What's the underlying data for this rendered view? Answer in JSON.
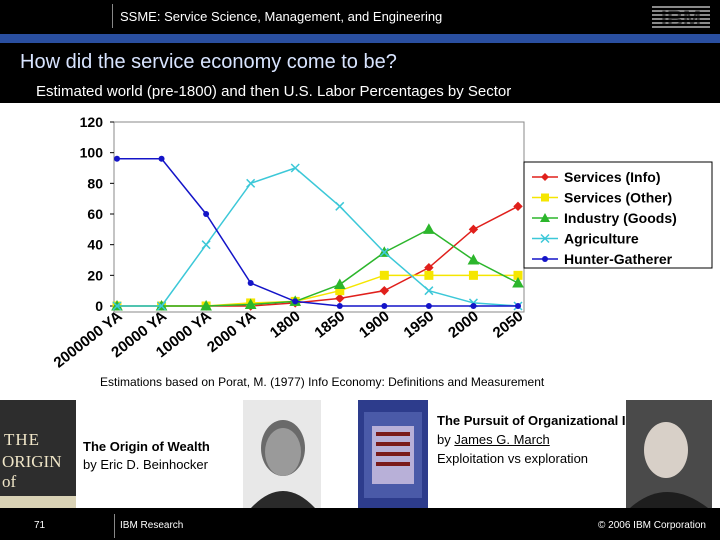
{
  "header": {
    "title": "SSME: Service Science, Management, and Engineering",
    "logo": "IBM"
  },
  "slide_title": "How did the service economy come to be?",
  "chart_heading": "Estimated world (pre-1800) and then U.S. Labor Percentages by Sector",
  "source_note": "Estimations based on Porat, M. (1977) Info Economy: Definitions and Measurement",
  "chart_data": {
    "type": "line",
    "categories": [
      "2000000 YA",
      "20000 YA",
      "10000 YA",
      "2000 YA",
      "1800",
      "1850",
      "1900",
      "1950",
      "2000",
      "2050"
    ],
    "ylim": [
      0,
      120
    ],
    "yticks": [
      "0",
      "20",
      "40",
      "60",
      "80",
      "100",
      "120"
    ],
    "legend_position": "right",
    "series": [
      {
        "name": "Services (Info)",
        "color": "#e0201c",
        "marker": "diamond",
        "values": [
          0,
          0,
          0,
          0,
          2,
          5,
          10,
          25,
          50,
          65
        ]
      },
      {
        "name": "Services (Other)",
        "color": "#f5e600",
        "marker": "square",
        "values": [
          0,
          0,
          0,
          2,
          3,
          10,
          20,
          20,
          20,
          20
        ]
      },
      {
        "name": "Industry (Goods)",
        "color": "#2cb62c",
        "marker": "triangle",
        "values": [
          0,
          0,
          0,
          1,
          3,
          14,
          35,
          50,
          30,
          15
        ]
      },
      {
        "name": "Agriculture",
        "color": "#3cc8d8",
        "marker": "x",
        "values": [
          0,
          0,
          40,
          80,
          90,
          65,
          35,
          10,
          2,
          0
        ]
      },
      {
        "name": "Hunter-Gatherer",
        "color": "#1414c8",
        "marker": "dot",
        "values": [
          96,
          96,
          60,
          15,
          3,
          0,
          0,
          0,
          0,
          0
        ]
      }
    ]
  },
  "book_left": {
    "cover_line1": "THE",
    "cover_line2": "ORIGIN of WEALTH",
    "title": "The Origin of Wealth",
    "byline": "by Eric D. Beinhocker"
  },
  "book_right": {
    "title": "The Pursuit of Organizational Intelligence,",
    "by": "by ",
    "author": "James G. March",
    "subtitle": "Exploitation vs exploration"
  },
  "footer": {
    "page": "71",
    "left": "IBM Research",
    "right": "© 2006 IBM Corporation"
  }
}
